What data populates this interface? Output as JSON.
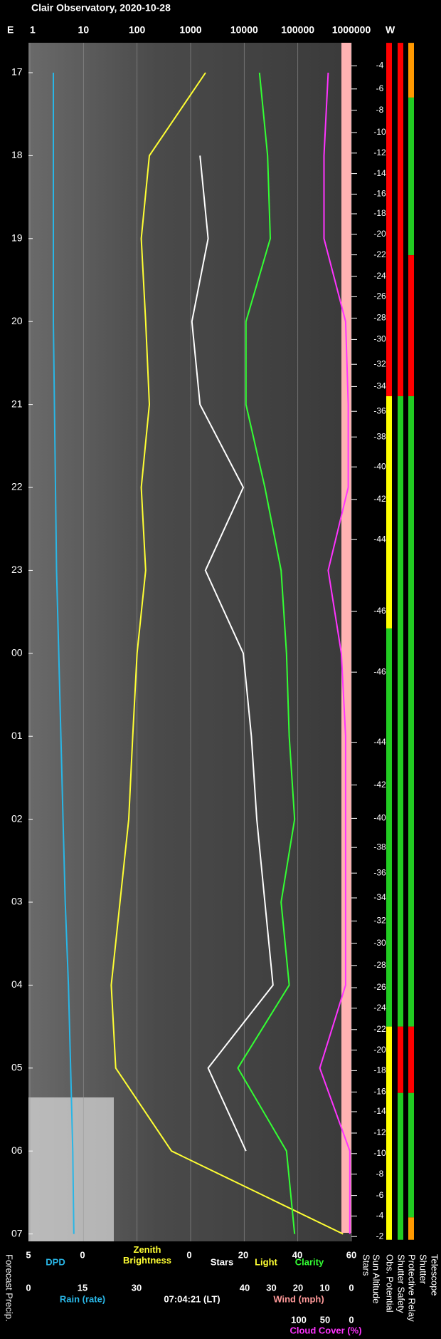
{
  "chart_data": {
    "type": "line",
    "title": "Clair Observatory, 2020-10-28",
    "east": "E",
    "west": "W",
    "timestamp": "07:04:21 (LT)",
    "forecast_label": "Forecast Precip.",
    "categories": [
      "17",
      "18",
      "19",
      "20",
      "21",
      "22",
      "23",
      "00",
      "01",
      "02",
      "03",
      "04",
      "05",
      "06",
      "07"
    ],
    "xscale": "log",
    "xlim": [
      1,
      1000000
    ],
    "xticks": [
      1,
      10,
      100,
      1000,
      10000,
      100000,
      1000000
    ],
    "grid": true,
    "sun_altitude": [
      -4,
      -6,
      -8,
      -10,
      -12,
      -14,
      -16,
      -18,
      -20,
      -22,
      -24,
      -26,
      -28,
      -30,
      -32,
      -34,
      -36,
      -38,
      -40,
      -42,
      -44,
      -46,
      -46,
      -44,
      -42,
      -40,
      -38,
      -36,
      -34,
      -32,
      -30,
      -28,
      -26,
      -24,
      -22,
      -20,
      -18,
      -16,
      -14,
      -12,
      -10,
      -8,
      -6,
      -4,
      -2
    ],
    "series": [
      {
        "name": "Zenith Brightness",
        "color": "#ffff33",
        "axis": "top",
        "values": [
          1900,
          170,
          120,
          145,
          170,
          120,
          145,
          100,
          83,
          70,
          48,
          33,
          40,
          440,
          700000
        ]
      },
      {
        "name": "DPD",
        "color": "#29b6e6",
        "axis": "dpd",
        "values": [
          2.7,
          2.7,
          2.7,
          2.7,
          2.6,
          2.5,
          2.4,
          2.2,
          2,
          1.8,
          1.6,
          1.3,
          1.1,
          0.9,
          0.8
        ]
      },
      {
        "name": "Stars",
        "color": "#ffffff",
        "axis": "sky",
        "values": [
          null,
          4,
          7,
          1,
          4,
          20,
          6,
          20,
          23,
          25,
          28,
          31,
          7,
          21,
          null
        ]
      },
      {
        "name": "Clarity",
        "color": "#33ff33",
        "axis": "sky",
        "values": [
          26,
          29,
          30,
          21,
          21,
          28,
          34,
          36,
          37,
          39,
          34,
          37,
          18,
          36,
          39
        ]
      },
      {
        "name": "Cloud Cover (%)",
        "color": "#ff33ff",
        "axis": "cloud",
        "values": [
          44,
          52,
          52,
          11,
          6,
          6,
          44,
          19,
          11,
          11,
          11,
          11,
          60,
          3,
          3
        ]
      }
    ],
    "scales": {
      "dpd": {
        "xlim": [
          5,
          0
        ],
        "xticks": [
          5,
          0
        ]
      },
      "rain": {
        "name": "Rain (rate)",
        "color": "#29b6e6",
        "xlim": [
          0,
          30
        ],
        "xticks": [
          0,
          15,
          30
        ]
      },
      "sky": {
        "name": "Light",
        "color": "#ffff33",
        "xlim": [
          0,
          60
        ],
        "xticks": [
          0,
          20,
          40,
          60
        ]
      },
      "wind": {
        "name": "Wind (mph)",
        "color": "#ff9999",
        "xlim": [
          40,
          0
        ],
        "xticks": [
          40,
          30,
          20,
          10,
          0
        ]
      },
      "cloud": {
        "xlim": [
          100,
          0
        ],
        "xticks": [
          100,
          50,
          0
        ]
      }
    },
    "columns": [
      {
        "name": "Stars"
      },
      {
        "name": "Sun Altitude"
      },
      {
        "name": "Obs. Potential",
        "segments": [
          {
            "from": -0.36,
            "to": 3.9,
            "color": "#ff0000"
          },
          {
            "from": 3.9,
            "to": 6.7,
            "color": "#ffff00"
          },
          {
            "from": 6.7,
            "to": 11.5,
            "color": "#22cc22"
          },
          {
            "from": 11.5,
            "to": 14.07,
            "color": "#ffff00"
          }
        ]
      },
      {
        "name": "Shutter Safety",
        "segments": [
          {
            "from": -0.36,
            "to": 3.9,
            "color": "#ff0000"
          },
          {
            "from": 3.9,
            "to": 11.5,
            "color": "#22cc22"
          },
          {
            "from": 11.5,
            "to": 12.3,
            "color": "#ff0000"
          },
          {
            "from": 12.3,
            "to": 14.07,
            "color": "#22cc22"
          }
        ]
      },
      {
        "name": "Protective Relay",
        "segments": [
          {
            "from": -0.36,
            "to": 0.3,
            "color": "#ff9900"
          },
          {
            "from": 0.3,
            "to": 2.2,
            "color": "#22cc22"
          },
          {
            "from": 2.2,
            "to": 3.9,
            "color": "#ff0000"
          },
          {
            "from": 3.9,
            "to": 11.5,
            "color": "#22cc22"
          },
          {
            "from": 11.5,
            "to": 12.3,
            "color": "#ff0000"
          },
          {
            "from": 12.3,
            "to": 13.8,
            "color": "#22cc22"
          },
          {
            "from": 13.8,
            "to": 14.07,
            "color": "#ff9900"
          }
        ]
      },
      {
        "name": "Shutter"
      },
      {
        "name": "Telescope"
      }
    ]
  }
}
